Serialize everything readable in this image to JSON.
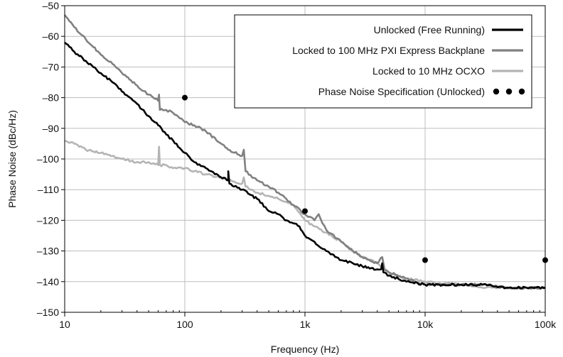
{
  "chart_data": {
    "type": "line",
    "x_scale": "log",
    "xlabel": "Frequency (Hz)",
    "ylabel": "Phase Noise (dBc/Hz)",
    "xlim": [
      10,
      100000
    ],
    "ylim": [
      -150,
      -50
    ],
    "x_ticks": [
      {
        "value": 10,
        "label": "10"
      },
      {
        "value": 100,
        "label": "100"
      },
      {
        "value": 1000,
        "label": "1k"
      },
      {
        "value": 10000,
        "label": "10k"
      },
      {
        "value": 100000,
        "label": "100k"
      }
    ],
    "y_ticks": [
      {
        "value": -50,
        "label": "–50"
      },
      {
        "value": -60,
        "label": "–60"
      },
      {
        "value": -70,
        "label": "–70"
      },
      {
        "value": -80,
        "label": "–80"
      },
      {
        "value": -90,
        "label": "–90"
      },
      {
        "value": -100,
        "label": "–100"
      },
      {
        "value": -110,
        "label": "–110"
      },
      {
        "value": -120,
        "label": "–120"
      },
      {
        "value": -130,
        "label": "–130"
      },
      {
        "value": -140,
        "label": "–140"
      },
      {
        "value": -150,
        "label": "–150"
      }
    ],
    "grid": true,
    "legend_position": "top-right",
    "series": [
      {
        "name": "Unlocked (Free Running)",
        "style": "line",
        "color": "#000000",
        "points": [
          [
            10,
            -62
          ],
          [
            12,
            -65
          ],
          [
            15,
            -68
          ],
          [
            20,
            -72
          ],
          [
            25,
            -75
          ],
          [
            30,
            -78
          ],
          [
            40,
            -82
          ],
          [
            50,
            -86
          ],
          [
            60,
            -89
          ],
          [
            70,
            -92
          ],
          [
            80,
            -94
          ],
          [
            100,
            -98
          ],
          [
            120,
            -101
          ],
          [
            150,
            -103
          ],
          [
            200,
            -106
          ],
          [
            230,
            -107
          ],
          [
            230,
            -104
          ],
          [
            235,
            -108
          ],
          [
            300,
            -110
          ],
          [
            400,
            -113
          ],
          [
            500,
            -117
          ],
          [
            600,
            -118
          ],
          [
            700,
            -120
          ],
          [
            800,
            -121
          ],
          [
            900,
            -122
          ],
          [
            1000,
            -125
          ],
          [
            1200,
            -127
          ],
          [
            1500,
            -130
          ],
          [
            2000,
            -133
          ],
          [
            2500,
            -134
          ],
          [
            3000,
            -135
          ],
          [
            4000,
            -136
          ],
          [
            4300,
            -136
          ],
          [
            4400,
            -134
          ],
          [
            4500,
            -137
          ],
          [
            5000,
            -138
          ],
          [
            7000,
            -140
          ],
          [
            10000,
            -141
          ],
          [
            20000,
            -141
          ],
          [
            30000,
            -141
          ],
          [
            50000,
            -142
          ],
          [
            70000,
            -142
          ],
          [
            100000,
            -142
          ]
        ]
      },
      {
        "name": "Locked to 100 MHz PXI Express Backplane",
        "style": "line",
        "color": "#808080",
        "points": [
          [
            10,
            -53
          ],
          [
            12,
            -57
          ],
          [
            15,
            -61
          ],
          [
            20,
            -66
          ],
          [
            25,
            -69
          ],
          [
            30,
            -72
          ],
          [
            40,
            -76
          ],
          [
            50,
            -79
          ],
          [
            60,
            -81
          ],
          [
            61,
            -79
          ],
          [
            62,
            -84
          ],
          [
            70,
            -84
          ],
          [
            80,
            -85
          ],
          [
            100,
            -88
          ],
          [
            120,
            -89
          ],
          [
            150,
            -91
          ],
          [
            200,
            -95
          ],
          [
            230,
            -97
          ],
          [
            300,
            -99
          ],
          [
            310,
            -97
          ],
          [
            320,
            -104
          ],
          [
            400,
            -107
          ],
          [
            500,
            -109
          ],
          [
            600,
            -111
          ],
          [
            700,
            -113
          ],
          [
            800,
            -115
          ],
          [
            1000,
            -118
          ],
          [
            1200,
            -120
          ],
          [
            1300,
            -118
          ],
          [
            1400,
            -121
          ],
          [
            1500,
            -123
          ],
          [
            2000,
            -127
          ],
          [
            2500,
            -130
          ],
          [
            3000,
            -132
          ],
          [
            4000,
            -134
          ],
          [
            4400,
            -132
          ],
          [
            4600,
            -136
          ],
          [
            5000,
            -137
          ],
          [
            7000,
            -139
          ],
          [
            10000,
            -141
          ],
          [
            20000,
            -141
          ],
          [
            30000,
            -141
          ],
          [
            50000,
            -142
          ],
          [
            70000,
            -142
          ],
          [
            100000,
            -142
          ]
        ]
      },
      {
        "name": "Locked to 10 MHz OCXO",
        "style": "line",
        "color": "#b4b4b4",
        "points": [
          [
            10,
            -94
          ],
          [
            12,
            -95
          ],
          [
            15,
            -97
          ],
          [
            20,
            -98
          ],
          [
            25,
            -99
          ],
          [
            30,
            -100
          ],
          [
            40,
            -101
          ],
          [
            50,
            -101
          ],
          [
            60,
            -102
          ],
          [
            61,
            -96
          ],
          [
            62,
            -102
          ],
          [
            70,
            -102
          ],
          [
            80,
            -103
          ],
          [
            100,
            -103
          ],
          [
            120,
            -104
          ],
          [
            150,
            -105
          ],
          [
            200,
            -106
          ],
          [
            230,
            -107
          ],
          [
            300,
            -108
          ],
          [
            310,
            -106
          ],
          [
            320,
            -109
          ],
          [
            400,
            -111
          ],
          [
            500,
            -112
          ],
          [
            600,
            -113
          ],
          [
            700,
            -114
          ],
          [
            800,
            -115
          ],
          [
            1000,
            -120
          ],
          [
            1200,
            -122
          ],
          [
            1500,
            -124
          ],
          [
            2000,
            -127
          ],
          [
            2500,
            -130
          ],
          [
            3000,
            -132
          ],
          [
            4000,
            -134
          ],
          [
            5000,
            -137
          ],
          [
            7000,
            -139
          ],
          [
            10000,
            -140
          ],
          [
            20000,
            -141
          ],
          [
            30000,
            -142
          ],
          [
            50000,
            -142
          ],
          [
            70000,
            -142
          ],
          [
            100000,
            -142
          ]
        ]
      },
      {
        "name": "Phase Noise Specification (Unlocked)",
        "style": "dots",
        "color": "#000000",
        "points": [
          [
            100,
            -80
          ],
          [
            1000,
            -117
          ],
          [
            10000,
            -133
          ],
          [
            100000,
            -133
          ]
        ]
      }
    ]
  }
}
